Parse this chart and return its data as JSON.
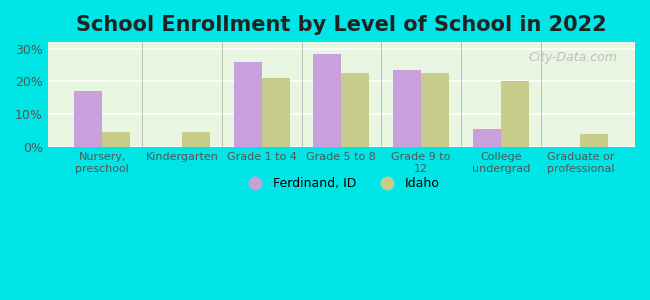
{
  "title": "School Enrollment by Level of School in 2022",
  "categories": [
    "Nursery,\npreschool",
    "Kindergarten",
    "Grade 1 to 4",
    "Grade 5 to 8",
    "Grade 9 to\n12",
    "College\nundergrad",
    "Graduate or\nprofessional"
  ],
  "ferdinand_values": [
    17,
    0,
    26,
    28.5,
    23.5,
    5.5,
    0
  ],
  "idaho_values": [
    4.5,
    4.5,
    21,
    22.5,
    22.5,
    20,
    4
  ],
  "ferdinand_color": "#c9a0dc",
  "idaho_color": "#c8cc8a",
  "background_color": "#00e5e5",
  "plot_bg_color": "#e8f5e0",
  "ylim": [
    0,
    32
  ],
  "yticks": [
    0,
    10,
    20,
    30
  ],
  "ytick_labels": [
    "0%",
    "10%",
    "20%",
    "30%"
  ],
  "title_fontsize": 15,
  "legend_labels": [
    "Ferdinand, ID",
    "Idaho"
  ],
  "bar_width": 0.35,
  "watermark": "City-Data.com"
}
